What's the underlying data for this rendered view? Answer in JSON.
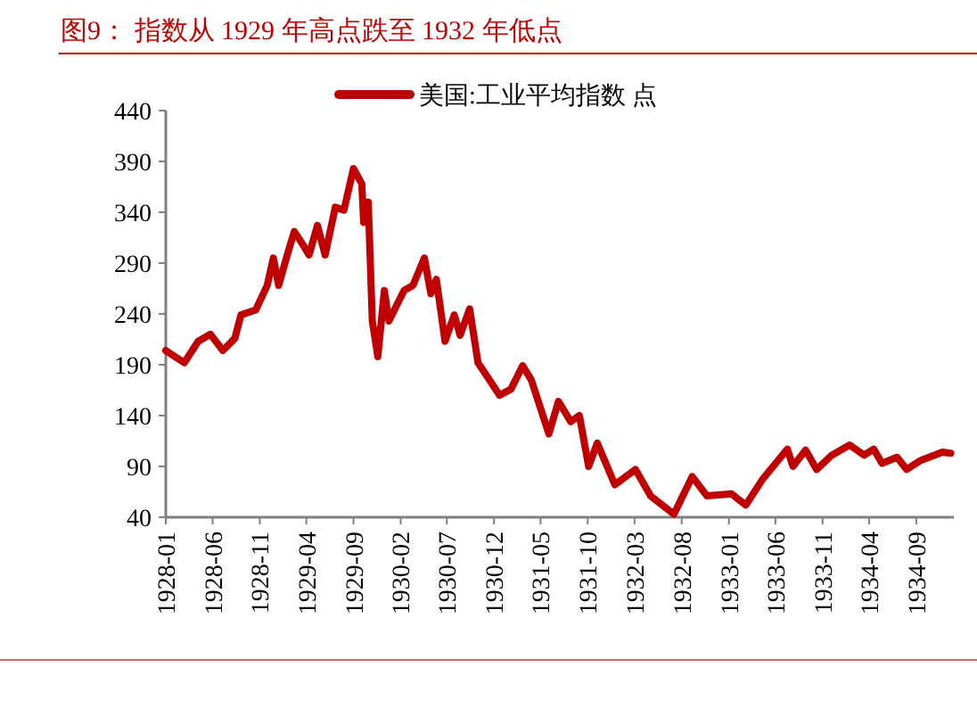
{
  "chart_data": {
    "type": "line",
    "title": "图9： 指数从 1929 年高点跌至 1932 年低点",
    "legend": "top",
    "xlim": [
      "1928-01",
      "1935-01"
    ],
    "xticks": [
      "1928-01",
      "1928-06",
      "1928-11",
      "1929-04",
      "1929-09",
      "1930-02",
      "1930-07",
      "1930-12",
      "1931-05",
      "1931-10",
      "1932-03",
      "1932-08",
      "1933-01",
      "1933-06",
      "1933-11",
      "1934-04",
      "1934-09"
    ],
    "ylim": [
      40,
      440
    ],
    "yticks": [
      40,
      90,
      140,
      190,
      240,
      290,
      340,
      390,
      440
    ],
    "series": [
      {
        "name": "美国:工业平均指数 点",
        "color": "#c00000",
        "x": [
          "1928-01-01",
          "1928-03-01",
          "1928-04-15",
          "1928-05-25",
          "1928-07-04",
          "1928-08-12",
          "1928-09-01",
          "1928-10-19",
          "1928-11-25",
          "1928-12-15",
          "1929-01-01",
          "1929-02-01",
          "1929-02-21",
          "1929-03-19",
          "1929-04-10",
          "1929-05-07",
          "1929-06-01",
          "1929-07-04",
          "1929-08-01",
          "1929-09-01",
          "1929-09-28",
          "1929-10-04",
          "1929-10-19",
          "1929-11-01",
          "1929-11-19",
          "1929-12-10",
          "1929-12-25",
          "1930-02-12",
          "1930-03-13",
          "1930-04-19",
          "1930-05-10",
          "1930-05-28",
          "1930-06-25",
          "1930-07-25",
          "1930-08-13",
          "1930-09-13",
          "1930-10-10",
          "1930-11-10",
          "1930-12-19",
          "1931-01-25",
          "1931-03-04",
          "1931-04-01",
          "1931-05-28",
          "1931-06-28",
          "1931-08-07",
          "1931-09-04",
          "1931-10-04",
          "1931-11-01",
          "1931-12-28",
          "1932-03-04",
          "1932-04-22",
          "1932-07-07",
          "1932-09-04",
          "1932-10-22",
          "1933-01-10",
          "1933-02-25",
          "1933-04-22",
          "1933-07-10",
          "1933-07-28",
          "1933-09-07",
          "1933-10-13",
          "1933-12-01",
          "1934-01-28",
          "1934-03-16",
          "1934-04-16",
          "1934-05-13",
          "1934-07-01",
          "1934-08-01",
          "1934-09-16",
          "1934-11-25",
          "1934-12-22"
        ],
        "values": [
          204,
          192,
          213,
          220,
          204,
          216,
          239,
          244,
          268,
          295,
          268,
          301,
          321,
          309,
          298,
          327,
          298,
          345,
          342,
          383,
          368,
          330,
          350,
          233,
          198,
          263,
          233,
          263,
          268,
          295,
          260,
          274,
          213,
          239,
          219,
          245,
          192,
          178,
          160,
          166,
          189,
          175,
          122,
          154,
          134,
          140,
          90,
          113,
          72,
          87,
          61,
          43,
          80,
          61,
          63,
          52,
          78,
          107,
          90,
          106,
          87,
          101,
          111,
          101,
          107,
          93,
          99,
          87,
          96,
          104,
          103
        ]
      }
    ]
  }
}
